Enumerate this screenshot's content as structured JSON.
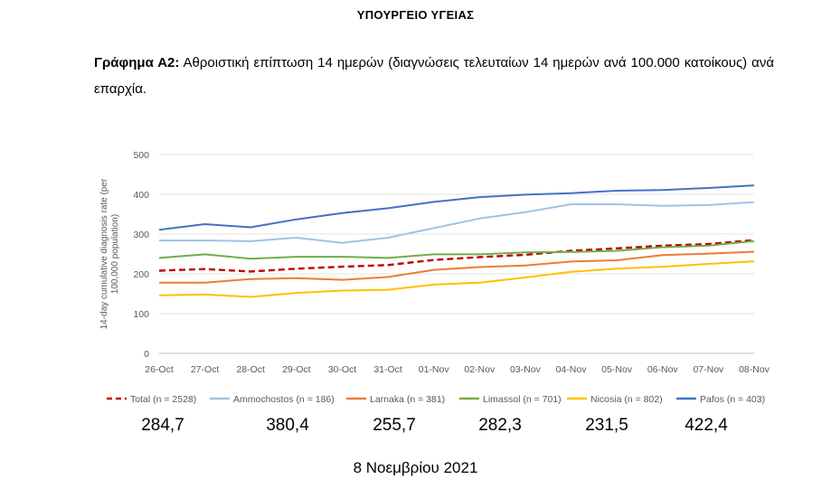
{
  "header": {
    "ministry": "ΥΠΟΥΡΓΕΙΟ ΥΓΕΙΑΣ"
  },
  "caption": {
    "label": "Γράφημα Α2:",
    "text": " Αθροιστική επίπτωση 14 ημερών (διαγνώσεις τελευταίων 14 ημερών ανά 100.000 κατοίκους) ανά επαρχία."
  },
  "chart_data": {
    "type": "line",
    "ylabel": "14-day cumulative diagnosis rate (per 100,000 population)",
    "ylabel_lines": [
      "14-day cumulative diagnosis rate (per",
      "100,000 population)"
    ],
    "xlabel": "",
    "ylim": [
      0,
      500
    ],
    "yticks": [
      0,
      100,
      200,
      300,
      400,
      500
    ],
    "grid": true,
    "legend_position": "bottom",
    "categories": [
      "26-Oct",
      "27-Oct",
      "28-Oct",
      "29-Oct",
      "30-Oct",
      "31-Oct",
      "01-Nov",
      "02-Nov",
      "03-Nov",
      "04-Nov",
      "05-Nov",
      "06-Nov",
      "07-Nov",
      "08-Nov"
    ],
    "series": [
      {
        "name": "Total (n = 2528)",
        "color": "#c00000",
        "dashed": true,
        "values": [
          208,
          212,
          206,
          213,
          218,
          222,
          235,
          242,
          248,
          258,
          264,
          271,
          275,
          284.7
        ]
      },
      {
        "name": "Ammochostos (n = 186)",
        "color": "#9dc3e6",
        "dashed": false,
        "values": [
          284,
          284,
          282,
          291,
          278,
          291,
          315,
          339,
          355,
          375,
          375,
          371,
          373,
          380.4
        ]
      },
      {
        "name": "Larnaka (n = 381)",
        "color": "#ed7d31",
        "dashed": false,
        "values": [
          178,
          178,
          187,
          189,
          185,
          192,
          210,
          217,
          221,
          231,
          234,
          247,
          251,
          255.7
        ]
      },
      {
        "name": "Limassol (n = 701)",
        "color": "#70ad47",
        "dashed": false,
        "values": [
          240,
          249,
          238,
          243,
          243,
          240,
          249,
          249,
          254,
          255,
          258,
          267,
          271,
          282.3
        ]
      },
      {
        "name": "Nicosia (n = 802)",
        "color": "#ffc000",
        "dashed": false,
        "values": [
          146,
          148,
          142,
          152,
          158,
          160,
          173,
          178,
          191,
          205,
          213,
          218,
          225,
          231.5
        ]
      },
      {
        "name": "Pafos (n = 403)",
        "color": "#4472c4",
        "dashed": false,
        "values": [
          311,
          325,
          317,
          337,
          353,
          365,
          381,
          393,
          399,
          403,
          409,
          411,
          416,
          422.4
        ]
      }
    ]
  },
  "latest_values": [
    "284,7",
    "380,4",
    "255,7",
    "282,3",
    "231,5",
    "422,4"
  ],
  "footer": {
    "date": "8 Νοεμβρίου 2021"
  }
}
